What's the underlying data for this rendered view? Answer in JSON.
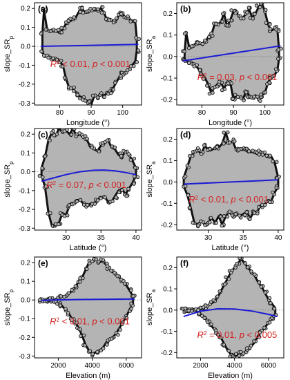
{
  "figure": {
    "line_color": "#1a1ad6",
    "annotation_color": "#d42020",
    "point_fill": "#b4b4b4",
    "outline_color": "#111111"
  },
  "chart_data": [
    {
      "id": "a",
      "panel_label": "(a)",
      "type": "scatter",
      "xlabel": "Longitude (°)",
      "ylabel_base": "slope_SR",
      "ylabel_sub": "p",
      "xlim": [
        72,
        106
      ],
      "ylim": [
        -0.31,
        0.23
      ],
      "xticks": [
        80,
        90,
        100
      ],
      "yticks": [
        -0.3,
        -0.2,
        -0.1,
        0.0,
        0.1,
        0.2
      ],
      "envelope": {
        "x": [
          74.5,
          75,
          76,
          77,
          78,
          79,
          80,
          81,
          82,
          83,
          84,
          85,
          86,
          87,
          88,
          89,
          90,
          91,
          92,
          93,
          94,
          95,
          96,
          97,
          98,
          99,
          100,
          101,
          102,
          103,
          104,
          104.5
        ],
        "upper": [
          0.07,
          0.19,
          0.09,
          0.08,
          0.08,
          0.08,
          0.07,
          0.09,
          0.12,
          0.13,
          0.14,
          0.15,
          0.18,
          0.2,
          0.18,
          0.18,
          0.19,
          0.19,
          0.19,
          0.2,
          0.18,
          0.14,
          0.14,
          0.13,
          0.14,
          0.17,
          0.17,
          0.15,
          0.15,
          0.13,
          0.13,
          0.04
        ],
        "lower": [
          -0.02,
          -0.05,
          -0.05,
          -0.06,
          -0.06,
          -0.07,
          -0.08,
          -0.1,
          -0.17,
          -0.22,
          -0.22,
          -0.24,
          -0.26,
          -0.27,
          -0.28,
          -0.29,
          -0.31,
          -0.26,
          -0.27,
          -0.25,
          -0.26,
          -0.25,
          -0.24,
          -0.22,
          -0.19,
          -0.16,
          -0.14,
          -0.14,
          -0.12,
          -0.1,
          -0.08,
          -0.02
        ]
      },
      "fit": {
        "x": [
          74,
          105
        ],
        "y": [
          0.0,
          0.01
        ]
      },
      "annotation": {
        "r2_op": "< 0.01",
        "p_text": "p < 0.001",
        "x": 77,
        "y": -0.11
      }
    },
    {
      "id": "b",
      "panel_label": "(b)",
      "type": "scatter",
      "xlabel": "Longitude (°)",
      "ylabel_base": "slope_SR",
      "ylabel_sub": "a",
      "xlim": [
        72,
        106
      ],
      "ylim": [
        -0.225,
        0.25
      ],
      "xticks": [
        80,
        90,
        100
      ],
      "yticks": [
        -0.2,
        -0.1,
        0.0,
        0.1,
        0.2
      ],
      "envelope": {
        "x": [
          74.5,
          75,
          76,
          77,
          78,
          79,
          80,
          81,
          82,
          83,
          84,
          85,
          86,
          87,
          88,
          89,
          90,
          91,
          92,
          93,
          94,
          95,
          96,
          97,
          98,
          99,
          100,
          101,
          102,
          103,
          104,
          104.5
        ],
        "upper": [
          0.02,
          0.11,
          0.04,
          0.05,
          0.06,
          0.06,
          0.06,
          0.07,
          0.09,
          0.1,
          0.15,
          0.15,
          0.16,
          0.2,
          0.14,
          0.17,
          0.21,
          0.2,
          0.19,
          0.18,
          0.2,
          0.22,
          0.18,
          0.2,
          0.23,
          0.25,
          0.21,
          0.15,
          0.12,
          0.13,
          0.12,
          0.03
        ],
        "lower": [
          -0.01,
          -0.02,
          -0.03,
          -0.03,
          -0.04,
          -0.06,
          -0.08,
          -0.1,
          -0.13,
          -0.17,
          -0.14,
          -0.13,
          -0.12,
          -0.15,
          -0.12,
          -0.12,
          -0.2,
          -0.18,
          -0.19,
          -0.2,
          -0.16,
          -0.18,
          -0.19,
          -0.18,
          -0.2,
          -0.18,
          -0.17,
          -0.12,
          -0.1,
          -0.09,
          -0.06,
          -0.01
        ]
      },
      "fit": {
        "x": [
          74,
          105
        ],
        "y": [
          -0.02,
          0.05
        ]
      },
      "annotation": {
        "r2_op": "= 0.03",
        "p_text": "p < 0.001",
        "x": 78.5,
        "y": -0.11
      }
    },
    {
      "id": "c",
      "panel_label": "(c)",
      "type": "scatter",
      "xlabel": "Latitude (°)",
      "ylabel_base": "slope_SR",
      "ylabel_sub": "p",
      "xlim": [
        25.5,
        40.8
      ],
      "ylim": [
        -0.31,
        0.23
      ],
      "xticks": [
        30,
        35,
        40
      ],
      "yticks": [
        -0.3,
        -0.2,
        -0.1,
        0.0,
        0.1,
        0.2
      ],
      "envelope": {
        "x": [
          26.5,
          27,
          27.5,
          28,
          28.5,
          29,
          29.5,
          30,
          30.5,
          31,
          31.5,
          32,
          32.5,
          33,
          33.5,
          34,
          34.5,
          35,
          35.5,
          36,
          36.5,
          37,
          37.5,
          38,
          38.5,
          39,
          39.5,
          40
        ],
        "upper": [
          0.02,
          0.08,
          0.17,
          0.21,
          0.19,
          0.23,
          0.21,
          0.22,
          0.2,
          0.23,
          0.19,
          0.2,
          0.18,
          0.17,
          0.13,
          0.12,
          0.11,
          0.14,
          0.15,
          0.17,
          0.13,
          0.12,
          0.09,
          0.08,
          0.11,
          0.09,
          0.06,
          0.02
        ],
        "lower": [
          -0.02,
          -0.08,
          -0.22,
          -0.29,
          -0.28,
          -0.27,
          -0.22,
          -0.23,
          -0.18,
          -0.17,
          -0.15,
          -0.15,
          -0.17,
          -0.18,
          -0.17,
          -0.17,
          -0.15,
          -0.14,
          -0.13,
          -0.16,
          -0.16,
          -0.13,
          -0.1,
          -0.09,
          -0.12,
          -0.09,
          -0.06,
          -0.02
        ]
      },
      "fit": {
        "x": [
          26.5,
          28,
          30,
          32,
          34,
          35.5,
          37,
          38.5,
          40
        ],
        "y": [
          -0.05,
          -0.035,
          -0.015,
          0.0,
          0.008,
          0.009,
          0.005,
          -0.004,
          -0.015
        ]
      },
      "annotation": {
        "r2_op": "= 0.07",
        "p_text": "p < 0.001",
        "x": 27.2,
        "y": -0.085
      }
    },
    {
      "id": "d",
      "panel_label": "(d)",
      "type": "scatter",
      "xlabel": "Latitude (°)",
      "ylabel_base": "slope_SR",
      "ylabel_sub": "a",
      "xlim": [
        25.5,
        40.8
      ],
      "ylim": [
        -0.225,
        0.25
      ],
      "xticks": [
        30,
        35,
        40
      ],
      "yticks": [
        -0.2,
        -0.1,
        0.0,
        0.1,
        0.2
      ],
      "envelope": {
        "x": [
          26.5,
          27,
          27.5,
          28,
          28.5,
          29,
          29.5,
          30,
          30.5,
          31,
          31.5,
          32,
          32.5,
          33,
          33.5,
          34,
          34.5,
          35,
          35.5,
          36,
          36.5,
          37,
          37.5,
          38,
          38.5,
          39,
          39.5,
          40
        ],
        "upper": [
          0.02,
          0.07,
          0.12,
          0.14,
          0.15,
          0.13,
          0.17,
          0.15,
          0.15,
          0.16,
          0.16,
          0.18,
          0.23,
          0.18,
          0.19,
          0.15,
          0.15,
          0.15,
          0.15,
          0.14,
          0.14,
          0.13,
          0.14,
          0.13,
          0.12,
          0.12,
          0.09,
          0.02
        ],
        "lower": [
          -0.02,
          -0.06,
          -0.12,
          -0.19,
          -0.2,
          -0.18,
          -0.2,
          -0.19,
          -0.17,
          -0.19,
          -0.16,
          -0.2,
          -0.16,
          -0.14,
          -0.16,
          -0.15,
          -0.16,
          -0.15,
          -0.14,
          -0.17,
          -0.14,
          -0.14,
          -0.11,
          -0.11,
          -0.09,
          -0.09,
          -0.05,
          -0.02
        ]
      },
      "fit": {
        "x": [
          26.5,
          40
        ],
        "y": [
          -0.01,
          0.01
        ]
      },
      "annotation": {
        "r2_op": "< 0.01",
        "p_text": "p < 0.001",
        "x": 27.2,
        "y": -0.095
      }
    },
    {
      "id": "e",
      "panel_label": "(e)",
      "type": "scatter",
      "xlabel": "Elevation (m)",
      "ylabel_base": "slope_SR",
      "ylabel_sub": "p",
      "xlim": [
        600,
        6900
      ],
      "ylim": [
        -0.31,
        0.23
      ],
      "xticks": [
        2000,
        4000,
        6000
      ],
      "yticks": [
        -0.3,
        -0.2,
        -0.1,
        0.0,
        0.1,
        0.2
      ],
      "envelope": {
        "x": [
          1000,
          1200,
          1400,
          1600,
          1800,
          2000,
          2200,
          2400,
          2600,
          2800,
          3000,
          3200,
          3400,
          3600,
          3800,
          4000,
          4200,
          4400,
          4600,
          4800,
          5000,
          5200,
          5400,
          5600,
          5800,
          6000,
          6200,
          6400
        ],
        "upper": [
          0.0,
          0.0,
          0.0,
          0.0,
          0.0,
          0.01,
          0.02,
          0.02,
          0.03,
          0.05,
          0.07,
          0.1,
          0.12,
          0.16,
          0.2,
          0.21,
          0.22,
          0.2,
          0.21,
          0.19,
          0.17,
          0.15,
          0.14,
          0.12,
          0.1,
          0.08,
          0.05,
          0.02
        ],
        "lower": [
          0.0,
          0.0,
          0.0,
          0.0,
          0.0,
          -0.02,
          -0.03,
          -0.05,
          -0.07,
          -0.1,
          -0.12,
          -0.15,
          -0.19,
          -0.24,
          -0.27,
          -0.29,
          -0.28,
          -0.27,
          -0.26,
          -0.23,
          -0.21,
          -0.2,
          -0.18,
          -0.15,
          -0.12,
          -0.09,
          -0.05,
          -0.02
        ]
      },
      "fit": {
        "x": [
          1000,
          2000,
          3000,
          4000,
          5000,
          6000,
          6500
        ],
        "y": [
          -0.002,
          0.0,
          0.002,
          0.003,
          0.004,
          0.005,
          0.005
        ]
      },
      "annotation": {
        "r2_op": "< 0.01",
        "p_text": "p < 0.001",
        "x": 1500,
        "y": -0.13
      }
    },
    {
      "id": "f",
      "panel_label": "(f)",
      "type": "scatter",
      "xlabel": "Elevation (m)",
      "ylabel_base": "slope_SR",
      "ylabel_sub": "a",
      "xlim": [
        600,
        6900
      ],
      "ylim": [
        -0.225,
        0.25
      ],
      "xticks": [
        2000,
        4000,
        6000
      ],
      "yticks": [
        -0.2,
        -0.1,
        0.0,
        0.1,
        0.2
      ],
      "envelope": {
        "x": [
          1000,
          1200,
          1400,
          1600,
          1800,
          2000,
          2200,
          2400,
          2600,
          2800,
          3000,
          3200,
          3400,
          3600,
          3800,
          4000,
          4200,
          4400,
          4600,
          4800,
          5000,
          5200,
          5400,
          5600,
          5800,
          6000,
          6200,
          6400
        ],
        "upper": [
          0.0,
          0.0,
          0.0,
          0.0,
          0.0,
          0.01,
          0.01,
          0.02,
          0.03,
          0.04,
          0.06,
          0.09,
          0.12,
          0.15,
          0.18,
          0.2,
          0.22,
          0.24,
          0.22,
          0.2,
          0.18,
          0.16,
          0.13,
          0.11,
          0.08,
          0.05,
          0.03,
          0.01
        ],
        "lower": [
          0.0,
          0.0,
          0.0,
          0.0,
          0.0,
          -0.02,
          -0.03,
          -0.05,
          -0.07,
          -0.09,
          -0.11,
          -0.13,
          -0.16,
          -0.19,
          -0.21,
          -0.22,
          -0.21,
          -0.2,
          -0.2,
          -0.18,
          -0.17,
          -0.15,
          -0.12,
          -0.1,
          -0.08,
          -0.06,
          -0.04,
          -0.02
        ]
      },
      "fit": {
        "x": [
          1000,
          2000,
          3000,
          4000,
          5000,
          6000,
          6500
        ],
        "y": [
          -0.03,
          -0.005,
          0.006,
          0.005,
          -0.004,
          -0.02,
          -0.03
        ]
      },
      "annotation": {
        "r2_op": "= 0.01",
        "p_text": "p < 0.005",
        "x": 1800,
        "y": -0.13
      }
    }
  ]
}
